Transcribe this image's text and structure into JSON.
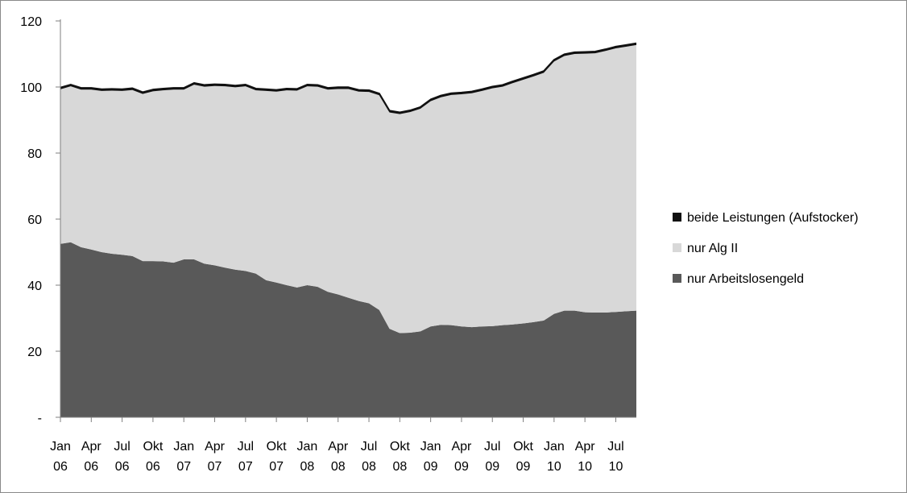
{
  "chart_data": {
    "type": "area",
    "stacked": true,
    "title": "",
    "xlabel": "",
    "ylabel": "",
    "ylim": [
      0,
      120
    ],
    "yticks": [
      0,
      20,
      40,
      60,
      80,
      100,
      120
    ],
    "ytick_labels": [
      "-",
      "20",
      "40",
      "60",
      "80",
      "100",
      "120"
    ],
    "x_tick_labels": [
      {
        "month": "Jan",
        "year": "06"
      },
      {
        "month": "Apr",
        "year": "06"
      },
      {
        "month": "Jul",
        "year": "06"
      },
      {
        "month": "Okt",
        "year": "06"
      },
      {
        "month": "Jan",
        "year": "07"
      },
      {
        "month": "Apr",
        "year": "07"
      },
      {
        "month": "Jul",
        "year": "07"
      },
      {
        "month": "Okt",
        "year": "07"
      },
      {
        "month": "Jan",
        "year": "08"
      },
      {
        "month": "Apr",
        "year": "08"
      },
      {
        "month": "Jul",
        "year": "08"
      },
      {
        "month": "Okt",
        "year": "08"
      },
      {
        "month": "Jan",
        "year": "09"
      },
      {
        "month": "Apr",
        "year": "09"
      },
      {
        "month": "Jul",
        "year": "09"
      },
      {
        "month": "Okt",
        "year": "09"
      },
      {
        "month": "Jan",
        "year": "10"
      },
      {
        "month": "Apr",
        "year": "10"
      },
      {
        "month": "Jul",
        "year": "10"
      }
    ],
    "x": [
      "2006-01",
      "2006-02",
      "2006-03",
      "2006-04",
      "2006-05",
      "2006-06",
      "2006-07",
      "2006-08",
      "2006-09",
      "2006-10",
      "2006-11",
      "2006-12",
      "2007-01",
      "2007-02",
      "2007-03",
      "2007-04",
      "2007-05",
      "2007-06",
      "2007-07",
      "2007-08",
      "2007-09",
      "2007-10",
      "2007-11",
      "2007-12",
      "2008-01",
      "2008-02",
      "2008-03",
      "2008-04",
      "2008-05",
      "2008-06",
      "2008-07",
      "2008-08",
      "2008-09",
      "2008-10",
      "2008-11",
      "2008-12",
      "2009-01",
      "2009-02",
      "2009-03",
      "2009-04",
      "2009-05",
      "2009-06",
      "2009-07",
      "2009-08",
      "2009-09",
      "2009-10",
      "2009-11",
      "2009-12",
      "2010-01",
      "2010-02",
      "2010-03",
      "2010-04",
      "2010-05",
      "2010-06",
      "2010-07",
      "2010-08",
      "2010-09"
    ],
    "series": [
      {
        "name": "nur Arbeitslosengeld",
        "color": "#595959",
        "values": [
          52.5,
          53,
          51.5,
          50.8,
          50,
          49.5,
          49.2,
          48.8,
          47.3,
          47.3,
          47.2,
          46.8,
          47.8,
          47.8,
          46.5,
          46,
          45.3,
          44.7,
          44.3,
          43.5,
          41.5,
          40.8,
          40,
          39.3,
          40,
          39.5,
          38,
          37.2,
          36.2,
          35.2,
          34.5,
          32.5,
          26.8,
          25.5,
          25.6,
          26,
          27.5,
          28,
          27.9,
          27.5,
          27.3,
          27.5,
          27.6,
          27.9,
          28.1,
          28.4,
          28.8,
          29.3,
          31.3,
          32.3,
          32.3,
          31.8,
          31.7,
          31.7,
          31.9,
          32.1,
          32.3
        ]
      },
      {
        "name": "nur Alg II",
        "color": "#d8d8d8",
        "values": [
          46.8,
          47.2,
          47.7,
          48.4,
          48.8,
          49.4,
          49.6,
          50.3,
          50.6,
          51.4,
          51.8,
          52.4,
          51.4,
          52.9,
          53.6,
          54.3,
          54.9,
          55.2,
          55.9,
          55.5,
          57.3,
          57.8,
          59,
          59.6,
          60.2,
          60.6,
          61.2,
          62.2,
          63.2,
          63.4,
          64,
          65,
          65.5,
          66.3,
          66.8,
          67.4,
          68.2,
          68.9,
          69.7,
          70.3,
          70.8,
          71.3,
          72,
          72.2,
          73.1,
          73.8,
          74.4,
          75,
          76.4,
          77.1,
          77.7,
          78.3,
          78.5,
          79.2,
          79.8,
          80.1,
          80.4
        ]
      },
      {
        "name": "beide Leistungen (Aufstocker)",
        "color": "#111111",
        "values": [
          0.5,
          0.5,
          0.5,
          0.5,
          0.5,
          0.5,
          0.5,
          0.5,
          0.5,
          0.5,
          0.5,
          0.5,
          0.5,
          0.5,
          0.5,
          0.5,
          0.5,
          0.5,
          0.5,
          0.5,
          0.5,
          0.5,
          0.5,
          0.5,
          0.5,
          0.5,
          0.5,
          0.5,
          0.5,
          0.5,
          0.5,
          0.5,
          0.5,
          0.5,
          0.5,
          0.5,
          0.5,
          0.5,
          0.5,
          0.5,
          0.5,
          0.5,
          0.5,
          0.5,
          0.5,
          0.5,
          0.5,
          0.5,
          0.5,
          0.5,
          0.5,
          0.5,
          0.5,
          0.5,
          0.5,
          0.5,
          0.5
        ]
      }
    ],
    "legend": {
      "position": "right",
      "order": [
        "beide Leistungen (Aufstocker)",
        "nur Alg II",
        "nur Arbeitslosengeld"
      ]
    },
    "grid": false
  }
}
